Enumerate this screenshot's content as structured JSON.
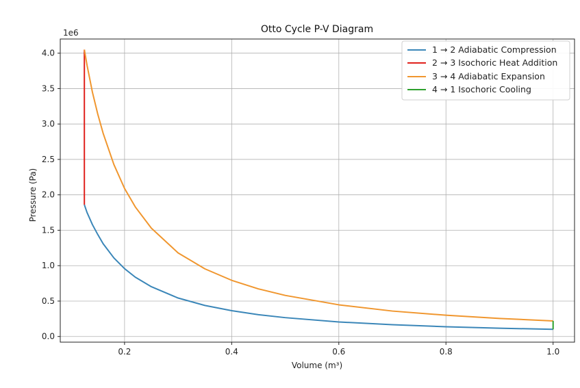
{
  "chart_data": {
    "type": "line",
    "title": "Otto Cycle P-V Diagram",
    "xlabel": "Volume (m³)",
    "ylabel": "Pressure (Pa)",
    "y_scale_label": "1e6",
    "xlim": [
      0.08,
      1.04
    ],
    "ylim": [
      -0.08,
      4.2
    ],
    "y_multiplier": 1000000,
    "xticks": [
      0.2,
      0.4,
      0.6,
      0.8,
      1.0
    ],
    "xtick_labels": [
      "0.2",
      "0.4",
      "0.6",
      "0.8",
      "1.0"
    ],
    "yticks": [
      0.0,
      0.5,
      1.0,
      1.5,
      2.0,
      2.5,
      3.0,
      3.5,
      4.0
    ],
    "ytick_labels": [
      "0.0",
      "0.5",
      "1.0",
      "1.5",
      "2.0",
      "2.5",
      "3.0",
      "3.5",
      "4.0"
    ],
    "grid": true,
    "legend_position": "top-right",
    "series": [
      {
        "name": "1 → 2 Adiabatic Compression",
        "color": "#3a86b8",
        "x": [
          1.0,
          0.9,
          0.8,
          0.7,
          0.6,
          0.5,
          0.45,
          0.4,
          0.35,
          0.3,
          0.25,
          0.22,
          0.2,
          0.18,
          0.16,
          0.15,
          0.14,
          0.13,
          0.125
        ],
        "y": [
          0.101,
          0.117,
          0.138,
          0.166,
          0.205,
          0.266,
          0.308,
          0.364,
          0.438,
          0.543,
          0.703,
          0.838,
          0.958,
          1.11,
          1.31,
          1.44,
          1.58,
          1.75,
          1.86
        ]
      },
      {
        "name": "2 → 3 Isochoric Heat Addition",
        "color": "#e0201b",
        "x": [
          0.125,
          0.125
        ],
        "y": [
          1.86,
          4.05
        ]
      },
      {
        "name": "3 → 4 Adiabatic Expansion",
        "color": "#f0962e",
        "x": [
          0.125,
          0.13,
          0.14,
          0.15,
          0.16,
          0.18,
          0.2,
          0.22,
          0.25,
          0.3,
          0.35,
          0.4,
          0.45,
          0.5,
          0.6,
          0.7,
          0.8,
          0.9,
          1.0
        ],
        "y": [
          4.05,
          3.83,
          3.45,
          3.14,
          2.87,
          2.43,
          2.09,
          1.83,
          1.53,
          1.18,
          0.955,
          0.793,
          0.672,
          0.58,
          0.447,
          0.359,
          0.3,
          0.255,
          0.22
        ]
      },
      {
        "name": "4 → 1 Isochoric Cooling",
        "color": "#2ca02c",
        "x": [
          1.0,
          1.0
        ],
        "y": [
          0.22,
          0.101
        ]
      }
    ]
  }
}
